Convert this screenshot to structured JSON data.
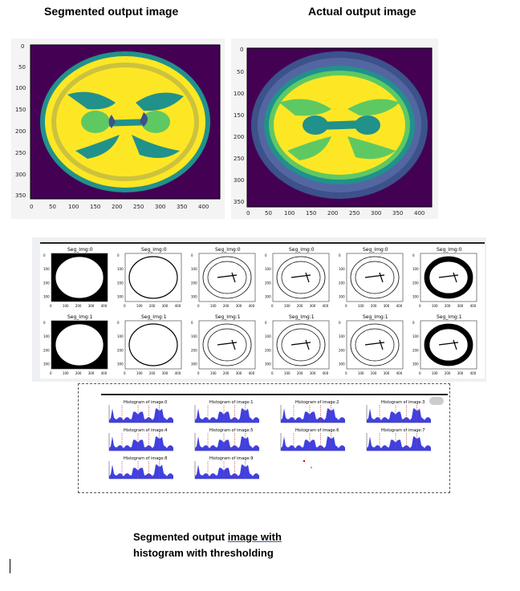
{
  "captions": {
    "segmented": "Segmented output image",
    "actual": "Actual output image",
    "bottom_line1_a": "Segmented output ",
    "bottom_line1_b": "image  with",
    "bottom_line2": "histogram with thresholding"
  },
  "axis": {
    "left_y": [
      "0",
      "50",
      "100",
      "150",
      "200",
      "250",
      "300",
      "350"
    ],
    "left_x": [
      "0",
      "50",
      "100",
      "150",
      "200",
      "250",
      "300",
      "350",
      "400"
    ],
    "right_y": [
      "0",
      "50",
      "100",
      "150",
      "200",
      "250",
      "300",
      "350"
    ],
    "right_x": [
      "0",
      "50",
      "100",
      "150",
      "200",
      "250",
      "300",
      "350",
      "400"
    ]
  },
  "seg_grid": {
    "row_titles": [
      "Seg_Img:0",
      "Seg_Img:1"
    ],
    "small_y": [
      "0",
      "100",
      "200",
      "300"
    ],
    "small_x": [
      "0",
      "100",
      "200",
      "300",
      "400"
    ]
  },
  "histograms": {
    "titles": [
      "Histogram of image:0",
      "Histogram of image:1",
      "Histogram of image:2",
      "Histogram of image:3",
      "Histogram of image:4",
      "Histogram of image:5",
      "Histogram of image:6",
      "Histogram of image:7",
      "Histogram of image:8",
      "Histogram of image:9"
    ]
  },
  "colors": {
    "viridis_dark": "#440154",
    "viridis_blue": "#3b528b",
    "viridis_teal": "#21918c",
    "viridis_green": "#5ec962",
    "viridis_yellow": "#fde725",
    "hist_fill": "#4040e0",
    "threshold": "#e03030"
  }
}
